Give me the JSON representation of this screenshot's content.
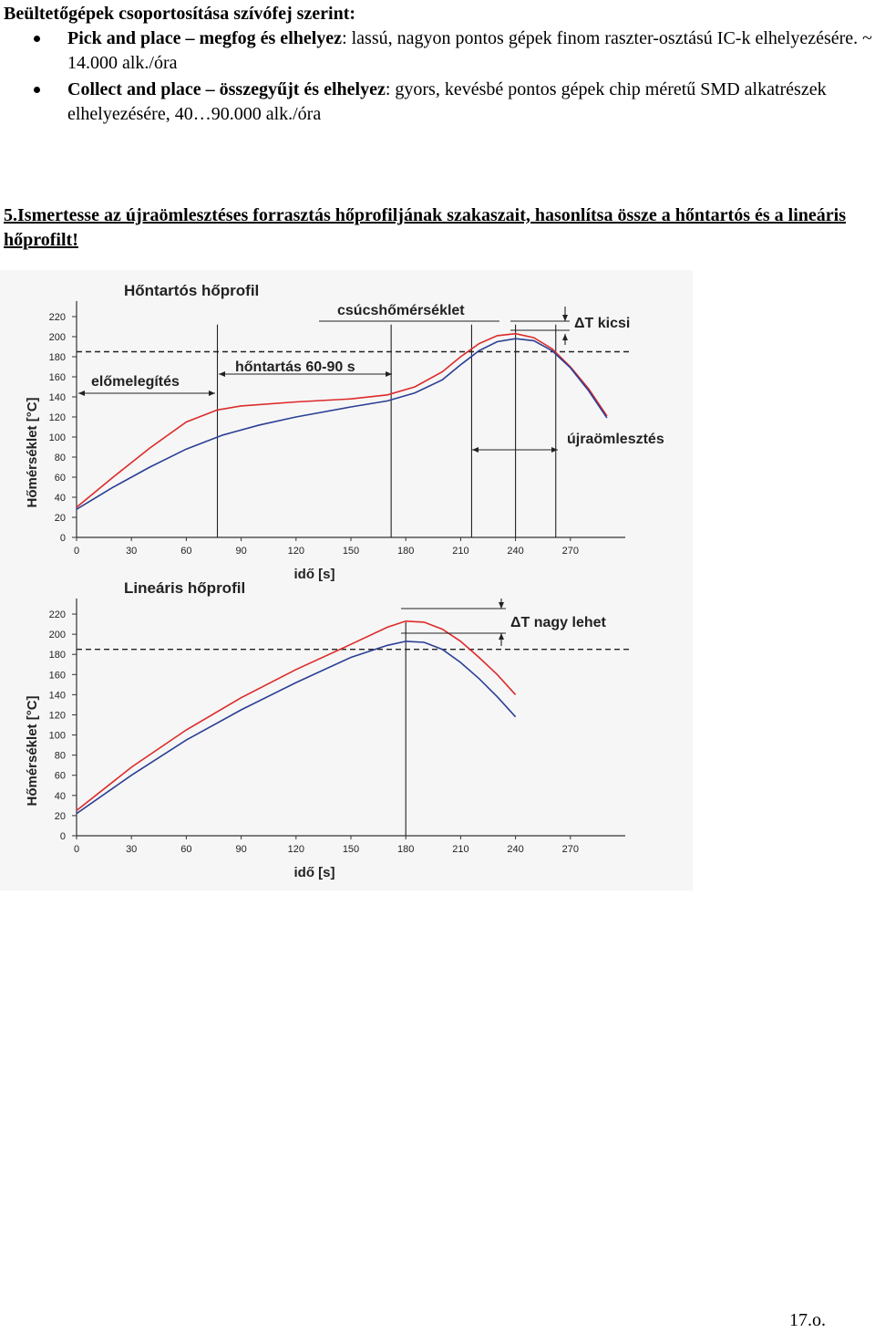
{
  "document": {
    "heading": "Beültetőgépek csoportosítása szívófej szerint:",
    "bullets": [
      {
        "term": "Pick and place – megfog és elhelyez",
        "description": ": lassú, nagyon pontos gépek finom raszter-osztású IC-k elhelyezésére. ~ 14.000 alk./óra"
      },
      {
        "term": "Collect and place – összegyűjt és elhelyez",
        "description": ": gyors, kevésbé pontos gépek chip méretű SMD alkatrészek elhelyezésére, 40…90.000 alk./óra"
      }
    ],
    "question": "5.Ismertesse az újraömlesztéses forrasztás hőprofiljának szakaszait, hasonlítsa össze a hőntartós és a lineáris hőprofilt!",
    "page_number": "17.o."
  },
  "colors": {
    "series_red": "#dd2a2a",
    "series_blue": "#2a3f95",
    "axis": "#333333"
  },
  "chart_data": [
    {
      "type": "line",
      "title": "Hőntartós hőprofil",
      "xlabel": "idő [s]",
      "ylabel": "Hőmérséklet [°C]",
      "xlim": [
        0,
        300
      ],
      "ylim": [
        0,
        230
      ],
      "xticks": [
        "0",
        "30",
        "60",
        "90",
        "120",
        "150",
        "180",
        "210",
        "240",
        "270"
      ],
      "yticks": [
        "0",
        "20",
        "40",
        "60",
        "80",
        "100",
        "120",
        "140",
        "160",
        "180",
        "200",
        "220"
      ],
      "reference_line_y": 185,
      "markers_x": [
        77,
        172,
        216,
        240,
        262
      ],
      "annotations": [
        "csúcshőmérséklet",
        "ΔT kicsi",
        "előmelegítés",
        "hőntartás  60-90 s",
        "újraömlesztés"
      ],
      "series": [
        {
          "color": "red",
          "x": [
            0,
            20,
            40,
            60,
            77,
            90,
            120,
            150,
            170,
            185,
            200,
            210,
            220,
            230,
            240,
            250,
            260,
            270,
            280,
            290
          ],
          "y": [
            30,
            60,
            89,
            115,
            127,
            131,
            135,
            138,
            142,
            150,
            165,
            180,
            193,
            201,
            203,
            199,
            188,
            170,
            148,
            121
          ]
        },
        {
          "color": "blue",
          "x": [
            0,
            20,
            40,
            60,
            80,
            100,
            120,
            150,
            170,
            185,
            200,
            210,
            220,
            230,
            240,
            250,
            260,
            270,
            280,
            290
          ],
          "y": [
            28,
            50,
            70,
            88,
            102,
            112,
            120,
            130,
            136,
            144,
            157,
            172,
            186,
            195,
            198,
            196,
            186,
            169,
            146,
            119
          ]
        }
      ]
    },
    {
      "type": "line",
      "title": "Lineáris hőprofil",
      "xlabel": "idő [s]",
      "ylabel": "Hőmérséklet [°C]",
      "xlim": [
        0,
        300
      ],
      "ylim": [
        0,
        230
      ],
      "xticks": [
        "0",
        "30",
        "60",
        "90",
        "120",
        "150",
        "180",
        "210",
        "240",
        "270"
      ],
      "yticks": [
        "0",
        "20",
        "40",
        "60",
        "80",
        "100",
        "120",
        "140",
        "160",
        "180",
        "200",
        "220"
      ],
      "reference_line_y": 185,
      "markers_x": [
        180
      ],
      "annotations": [
        "ΔT nagy lehet"
      ],
      "series": [
        {
          "color": "red",
          "x": [
            0,
            30,
            60,
            90,
            120,
            150,
            170,
            180,
            190,
            200,
            210,
            220,
            230,
            240
          ],
          "y": [
            25,
            68,
            105,
            137,
            165,
            190,
            207,
            213,
            212,
            205,
            193,
            177,
            160,
            140
          ]
        },
        {
          "color": "blue",
          "x": [
            0,
            30,
            60,
            90,
            120,
            150,
            170,
            180,
            190,
            200,
            210,
            220,
            230,
            240
          ],
          "y": [
            22,
            60,
            95,
            125,
            152,
            177,
            189,
            193,
            192,
            185,
            172,
            156,
            138,
            118
          ]
        }
      ]
    }
  ]
}
